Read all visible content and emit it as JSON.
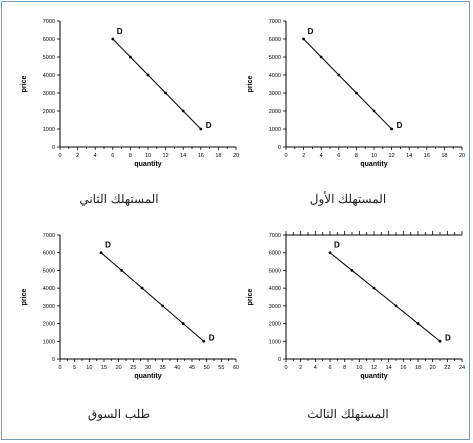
{
  "chart_data": [
    {
      "type": "line",
      "caption": "المستهلك الثاني",
      "xlabel": "quantity",
      "ylabel": "price",
      "xlim": [
        0,
        20
      ],
      "ylim": [
        0,
        7000
      ],
      "xticks": [
        0,
        2,
        4,
        6,
        8,
        10,
        12,
        14,
        16,
        18,
        20
      ],
      "yticks": [
        0,
        1000,
        2000,
        3000,
        4000,
        5000,
        6000,
        7000
      ],
      "top_ticks": false,
      "series": [
        {
          "x": [
            6,
            8,
            10,
            12,
            14,
            16
          ],
          "y": [
            6000,
            5000,
            4000,
            3000,
            2000,
            1000
          ]
        }
      ],
      "annotations": [
        {
          "text": "D",
          "x": 6,
          "y": 6000
        },
        {
          "text": "D",
          "x": 16,
          "y": 1000
        }
      ]
    },
    {
      "type": "line",
      "caption": "المستهلك الأول",
      "xlabel": "quantity",
      "ylabel": "price",
      "xlim": [
        0,
        20
      ],
      "ylim": [
        0,
        7000
      ],
      "xticks": [
        0,
        2,
        4,
        6,
        8,
        10,
        12,
        14,
        16,
        18,
        20
      ],
      "yticks": [
        0,
        1000,
        2000,
        3000,
        4000,
        5000,
        6000,
        7000
      ],
      "top_ticks": false,
      "series": [
        {
          "x": [
            2,
            4,
            6,
            8,
            10,
            12
          ],
          "y": [
            6000,
            5000,
            4000,
            3000,
            2000,
            1000
          ]
        }
      ],
      "annotations": [
        {
          "text": "D",
          "x": 2,
          "y": 6000
        },
        {
          "text": "D",
          "x": 12,
          "y": 1000
        }
      ]
    },
    {
      "type": "line",
      "caption": "طلب السوق",
      "xlabel": "quantity",
      "ylabel": "price",
      "xlim": [
        0,
        60
      ],
      "ylim": [
        0,
        7000
      ],
      "xticks": [
        0,
        5,
        10,
        15,
        20,
        25,
        30,
        35,
        40,
        45,
        50,
        55,
        60
      ],
      "yticks": [
        0,
        1000,
        2000,
        3000,
        4000,
        5000,
        6000,
        7000
      ],
      "top_ticks": false,
      "series": [
        {
          "x": [
            14,
            21,
            28,
            35,
            42,
            49
          ],
          "y": [
            6000,
            5000,
            4000,
            3000,
            2000,
            1000
          ]
        }
      ],
      "annotations": [
        {
          "text": "D",
          "x": 14,
          "y": 6000
        },
        {
          "text": "D",
          "x": 49,
          "y": 1000
        }
      ]
    },
    {
      "type": "line",
      "caption": "المستهلك الثالث",
      "xlabel": "quantity",
      "ylabel": "price",
      "xlim": [
        0,
        24
      ],
      "ylim": [
        0,
        7000
      ],
      "xticks": [
        0,
        2,
        4,
        6,
        8,
        10,
        12,
        14,
        16,
        18,
        20,
        22,
        24
      ],
      "yticks": [
        0,
        1000,
        2000,
        3000,
        4000,
        5000,
        6000,
        7000
      ],
      "top_ticks": true,
      "series": [
        {
          "x": [
            6,
            9,
            12,
            15,
            18,
            21
          ],
          "y": [
            6000,
            5000,
            4000,
            3000,
            2000,
            1000
          ]
        }
      ],
      "annotations": [
        {
          "text": "D",
          "x": 6,
          "y": 6000
        },
        {
          "text": "D",
          "x": 21,
          "y": 1000
        }
      ]
    }
  ]
}
